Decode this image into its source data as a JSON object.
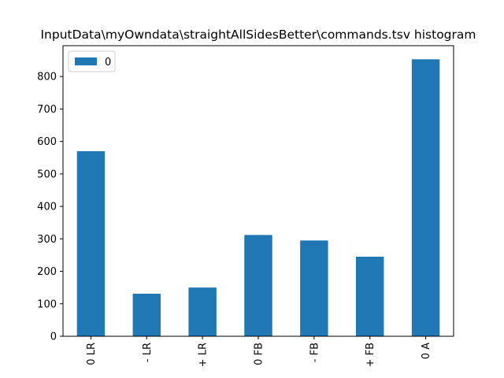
{
  "chart_data": {
    "type": "bar",
    "title": "InputData\\myOwndata\\straightAllSidesBetter\\commands.tsv histogram",
    "categories": [
      "0 LR",
      "- LR",
      "+ LR",
      "0 FB",
      "- FB",
      "+ FB",
      "0 A"
    ],
    "series": [
      {
        "name": "0",
        "values": [
          570,
          131,
          150,
          312,
          295,
          245,
          853
        ],
        "color": "#1f77b4"
      }
    ],
    "ylim": [
      0,
      895
    ],
    "yticks": [
      0,
      100,
      200,
      300,
      400,
      500,
      600,
      700,
      800
    ],
    "xlabel": "",
    "ylabel": "",
    "grid": false,
    "legend": "top-left",
    "x_tick_rotation": 90
  }
}
